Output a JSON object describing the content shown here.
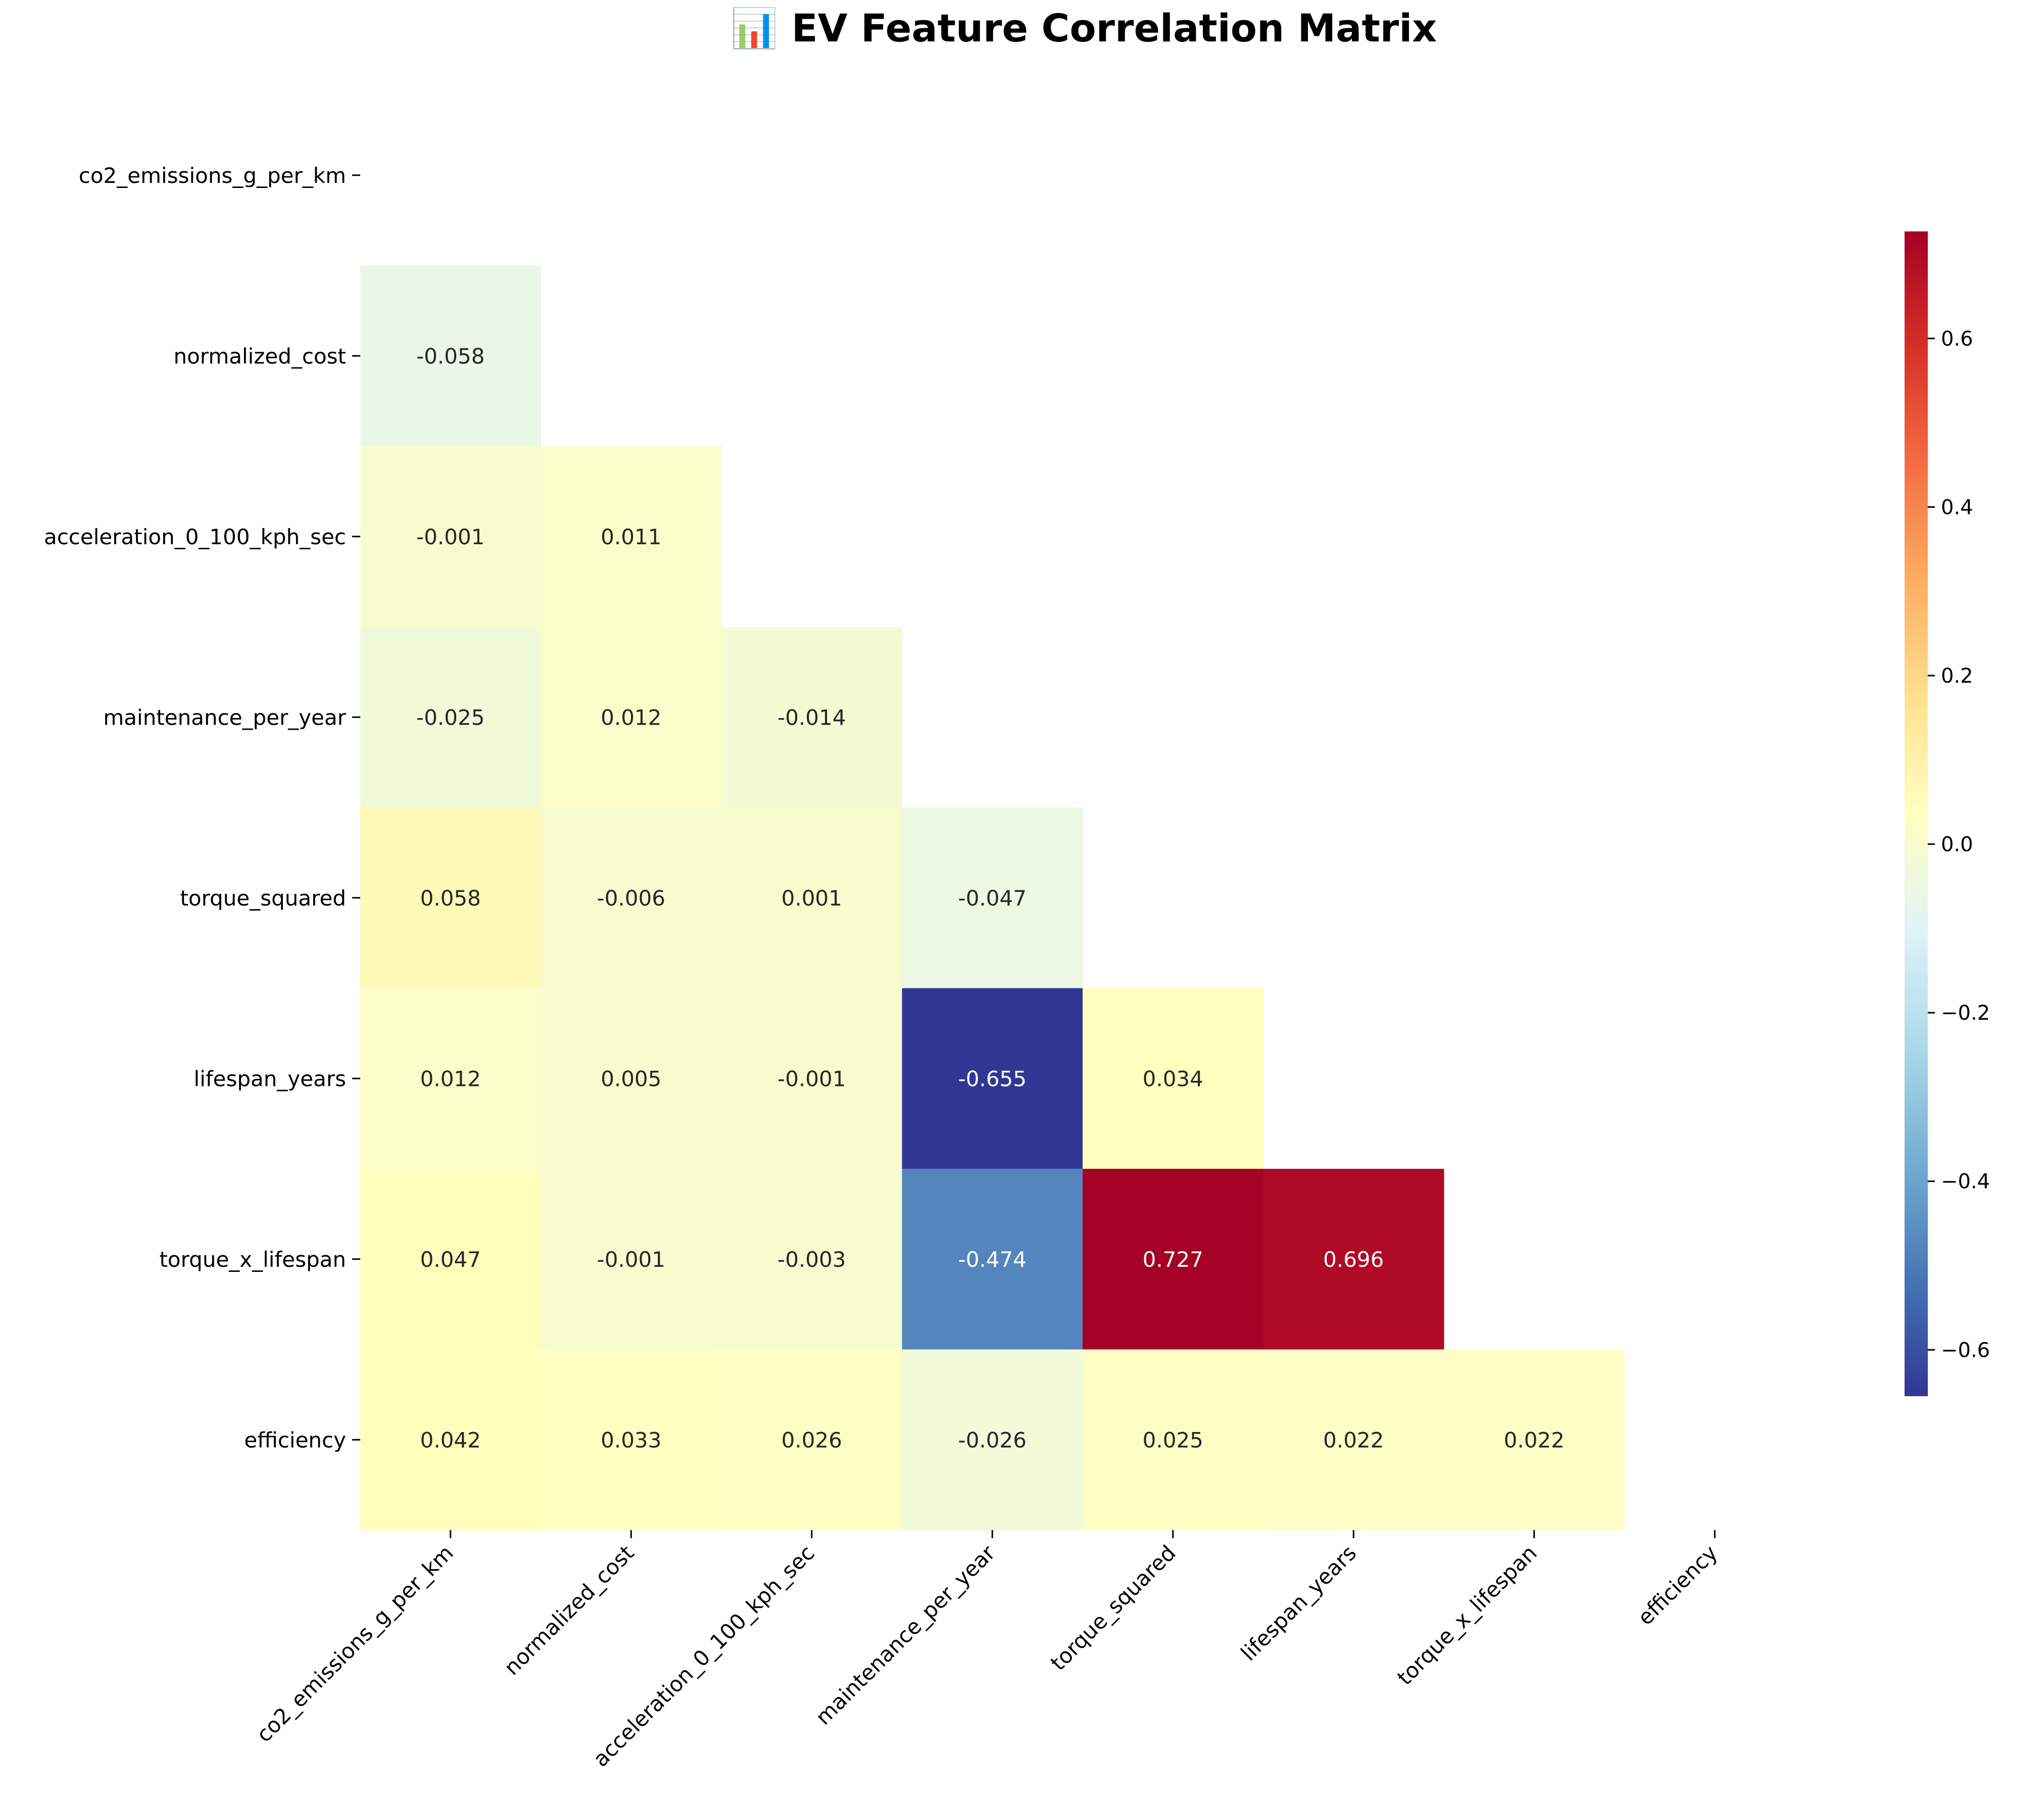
{
  "chart_data": {
    "type": "heatmap",
    "title": "📊 EV Feature Correlation Matrix",
    "title_icon": "bar-chart-icon",
    "xlabel": "",
    "ylabel": "",
    "variables": [
      "co2_emissions_g_per_km",
      "normalized_cost",
      "acceleration_0_100_kph_sec",
      "maintenance_per_year",
      "torque_squared",
      "lifespan_years",
      "torque_x_lifespan",
      "efficiency"
    ],
    "mask": "upper-triangle-and-diagonal",
    "matrix": [
      [
        null,
        null,
        null,
        null,
        null,
        null,
        null,
        null
      ],
      [
        -0.058,
        null,
        null,
        null,
        null,
        null,
        null,
        null
      ],
      [
        -0.001,
        0.011,
        null,
        null,
        null,
        null,
        null,
        null
      ],
      [
        -0.025,
        0.012,
        -0.014,
        null,
        null,
        null,
        null,
        null
      ],
      [
        0.058,
        -0.006,
        0.001,
        -0.047,
        null,
        null,
        null,
        null
      ],
      [
        0.012,
        0.005,
        -0.001,
        -0.655,
        0.034,
        null,
        null,
        null
      ],
      [
        0.047,
        -0.001,
        -0.003,
        -0.474,
        0.727,
        0.696,
        null,
        null
      ],
      [
        0.042,
        0.033,
        0.026,
        -0.026,
        0.025,
        0.022,
        0.022,
        null
      ]
    ],
    "colormap": "RdYlBu_r",
    "vmin": -0.655,
    "vmax": 0.727,
    "colorbar": {
      "ticks": [
        -0.6,
        -0.4,
        -0.2,
        0.0,
        0.2,
        0.4,
        0.6
      ],
      "tick_labels": [
        "−0.6",
        "−0.4",
        "−0.2",
        "0.0",
        "0.2",
        "0.4",
        "0.6"
      ]
    },
    "legend_placement": "right",
    "grid": false
  }
}
